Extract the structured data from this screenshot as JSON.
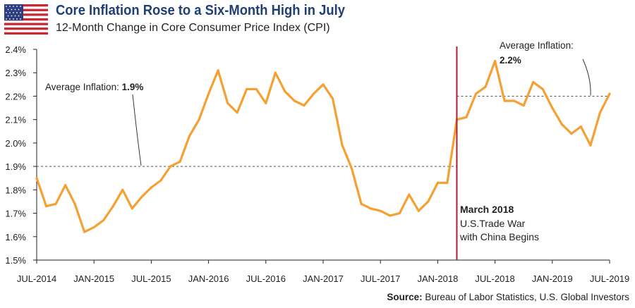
{
  "header": {
    "title": "Core Inflation Rose to a Six-Month High in July",
    "subtitle": "12-Month Change in Core Consumer Price Index (CPI)"
  },
  "footer": {
    "source_label": "Source:",
    "source_text": "Bureau of Labor Statistics, U.S. Global Investors"
  },
  "colors": {
    "title": "#1f3f76",
    "line": "#f5a033",
    "event_line": "#b11f2a",
    "reference_line": "#555555",
    "axis": "#222222"
  },
  "chart_data": {
    "type": "line",
    "title": "Core Inflation Rose to a Six-Month High in July",
    "subtitle": "12-Month Change in Core Consumer Price Index (CPI)",
    "xlabel": "",
    "ylabel": "",
    "ylim": [
      1.5,
      2.4
    ],
    "yticks": [
      1.5,
      1.6,
      1.7,
      1.8,
      1.9,
      2.0,
      2.1,
      2.2,
      2.3,
      2.4
    ],
    "ytick_labels": [
      "1.5%",
      "1.6%",
      "1.7%",
      "1.8%",
      "1.9%",
      "2.0%",
      "2.1%",
      "2.2%",
      "2.3%",
      "2.4%"
    ],
    "x_tick_labels": [
      "JUL-2014",
      "JAN-2015",
      "JUL-2015",
      "JAN-2016",
      "JUL-2016",
      "JAN-2017",
      "JUL-2017",
      "JAN-2018",
      "JUL-2018",
      "JAN-2019",
      "JUL-2019"
    ],
    "x": [
      "2014-07",
      "2014-08",
      "2014-09",
      "2014-10",
      "2014-11",
      "2014-12",
      "2015-01",
      "2015-02",
      "2015-03",
      "2015-04",
      "2015-05",
      "2015-06",
      "2015-07",
      "2015-08",
      "2015-09",
      "2015-10",
      "2015-11",
      "2015-12",
      "2016-01",
      "2016-02",
      "2016-03",
      "2016-04",
      "2016-05",
      "2016-06",
      "2016-07",
      "2016-08",
      "2016-09",
      "2016-10",
      "2016-11",
      "2016-12",
      "2017-01",
      "2017-02",
      "2017-03",
      "2017-04",
      "2017-05",
      "2017-06",
      "2017-07",
      "2017-08",
      "2017-09",
      "2017-10",
      "2017-11",
      "2017-12",
      "2018-01",
      "2018-02",
      "2018-03",
      "2018-04",
      "2018-05",
      "2018-06",
      "2018-07",
      "2018-08",
      "2018-09",
      "2018-10",
      "2018-11",
      "2018-12",
      "2019-01",
      "2019-02",
      "2019-03",
      "2019-04",
      "2019-05",
      "2019-06",
      "2019-07"
    ],
    "series": [
      {
        "values": [
          1.85,
          1.73,
          1.74,
          1.82,
          1.74,
          1.62,
          1.64,
          1.67,
          1.73,
          1.8,
          1.72,
          1.77,
          1.81,
          1.84,
          1.9,
          1.92,
          2.03,
          2.1,
          2.21,
          2.31,
          2.17,
          2.13,
          2.23,
          2.23,
          2.17,
          2.3,
          2.22,
          2.18,
          2.16,
          2.21,
          2.25,
          2.19,
          1.99,
          1.89,
          1.74,
          1.72,
          1.71,
          1.69,
          1.7,
          1.78,
          1.71,
          1.75,
          1.83,
          1.83,
          2.1,
          2.11,
          2.21,
          2.24,
          2.35,
          2.18,
          2.18,
          2.16,
          2.26,
          2.23,
          2.15,
          2.08,
          2.04,
          2.07,
          1.99,
          2.13,
          2.21
        ]
      }
    ],
    "reference_lines": [
      {
        "label": "Average Inflation:",
        "value_label": "1.9%",
        "y": 1.9,
        "x_start": "2014-07",
        "x_end": "2018-03"
      },
      {
        "label": "Average Inflation:",
        "value_label": "2.2%",
        "y": 2.2,
        "x_start": "2018-03",
        "x_end": "2019-07"
      }
    ],
    "event_marker": {
      "x": "2018-03",
      "title": "March 2018",
      "lines": [
        "U.S.Trade War",
        "with China Begins"
      ]
    },
    "grid": false,
    "legend": "none"
  }
}
